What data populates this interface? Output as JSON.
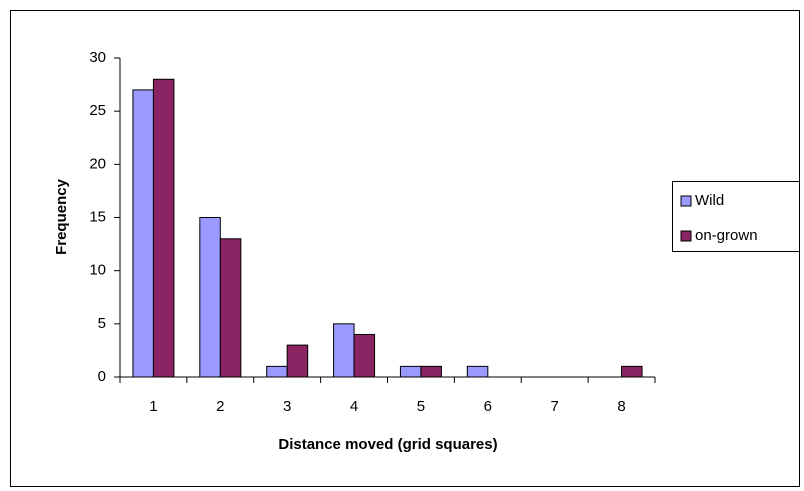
{
  "chart_data": {
    "type": "bar",
    "x_label": "Distance moved (grid squares)",
    "y_label": "Frequency",
    "categories": [
      "1",
      "2",
      "3",
      "4",
      "5",
      "6",
      "7",
      "8"
    ],
    "series": [
      {
        "name": "Wild",
        "color": "#9999ff",
        "values": [
          27,
          15,
          1,
          5,
          1,
          1,
          0,
          0
        ]
      },
      {
        "name": "on-grown",
        "color": "#8b2462",
        "values": [
          28,
          13,
          3,
          4,
          1,
          0,
          0,
          1
        ]
      }
    ],
    "ylim": [
      0,
      30
    ],
    "yticks": [
      0,
      5,
      10,
      15,
      20,
      25,
      30
    ],
    "grid": false,
    "legend": "right"
  }
}
